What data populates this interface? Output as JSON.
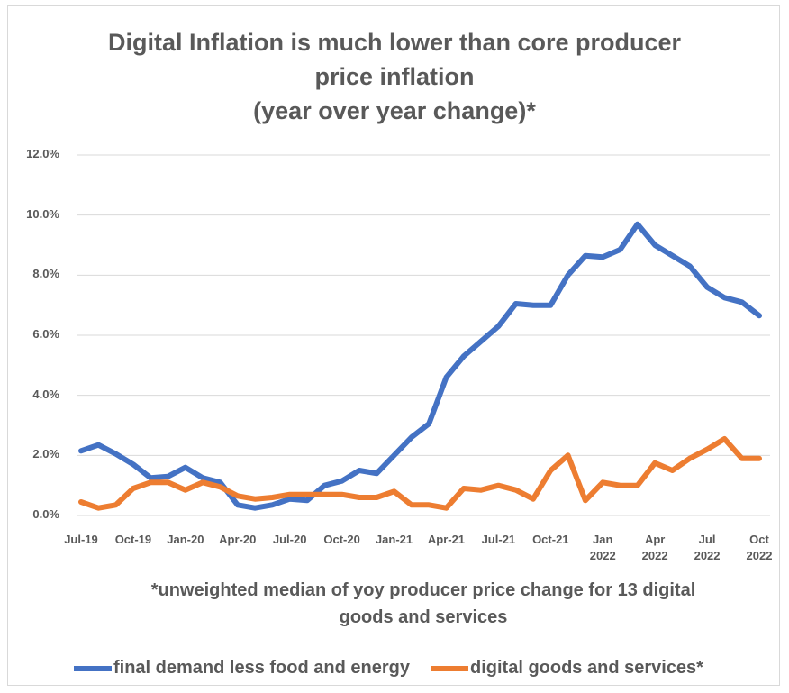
{
  "chart_data": {
    "type": "line",
    "title": "Digital Inflation is much lower than core producer price inflation",
    "subtitle": "(year over year change)*",
    "note": "*unweighted median of yoy producer price change for 13 digital goods and services",
    "categories": [
      "Jul-19",
      null,
      null,
      "Oct-19",
      null,
      null,
      "Jan-20",
      null,
      null,
      "Apr-20",
      null,
      null,
      "Jul-20",
      null,
      null,
      "Oct-20",
      null,
      null,
      "Jan-21",
      null,
      null,
      "Apr-21",
      null,
      null,
      "Jul-21",
      null,
      null,
      "Oct-21",
      null,
      null,
      "Jan 2022",
      null,
      null,
      "Apr 2022",
      null,
      null,
      "Jul 2022",
      null,
      null,
      "Oct 2022"
    ],
    "series": [
      {
        "name": "final demand less food and energy",
        "color": "#4472c4",
        "values": [
          2.15,
          2.35,
          2.05,
          1.7,
          1.25,
          1.3,
          1.6,
          1.25,
          1.1,
          0.35,
          0.25,
          0.35,
          0.55,
          0.5,
          1.0,
          1.15,
          1.5,
          1.4,
          2.0,
          2.6,
          3.05,
          4.6,
          5.3,
          5.8,
          6.3,
          7.05,
          7.0,
          7.0,
          8.0,
          8.65,
          8.6,
          8.85,
          9.7,
          9.0,
          8.65,
          8.3,
          7.6,
          7.25,
          7.1,
          6.65
        ]
      },
      {
        "name": "digital goods and services*",
        "color": "#ed7d31",
        "values": [
          0.45,
          0.25,
          0.35,
          0.9,
          1.1,
          1.1,
          0.85,
          1.1,
          0.95,
          0.65,
          0.55,
          0.6,
          0.7,
          0.7,
          0.7,
          0.7,
          0.6,
          0.6,
          0.8,
          0.35,
          0.35,
          0.25,
          0.9,
          0.85,
          1.0,
          0.85,
          0.55,
          1.5,
          2.0,
          0.5,
          1.1,
          1.0,
          1.0,
          1.75,
          1.5,
          1.9,
          2.2,
          2.55,
          1.9,
          1.9
        ]
      }
    ],
    "ylim": [
      0,
      12
    ],
    "yticks": [
      {
        "value": 0,
        "label": "0.0%"
      },
      {
        "value": 2,
        "label": "2.0%"
      },
      {
        "value": 4,
        "label": "4.0%"
      },
      {
        "value": 6,
        "label": "6.0%"
      },
      {
        "value": 8,
        "label": "8.0%"
      },
      {
        "value": 10,
        "label": "10.0%"
      },
      {
        "value": 12,
        "label": "12.0%"
      }
    ],
    "grid": true,
    "legend": "bottom"
  }
}
